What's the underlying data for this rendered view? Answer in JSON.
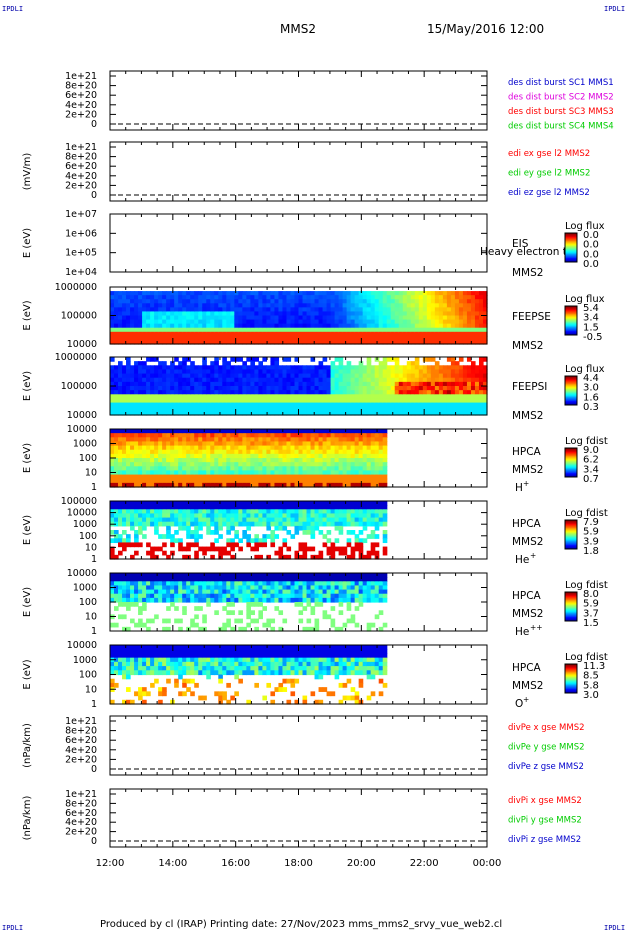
{
  "corners": {
    "tl": "IPDLI",
    "tr": "IPDLI",
    "bl": "IPDLI",
    "br": "IPDLI"
  },
  "header": {
    "spacecraft": "MMS2",
    "datetime": "15/May/2016 12:00"
  },
  "footer": {
    "text": "Produced by cl (IRAP)   Printing date: 27/Nov/2023   mms_mms2_srvy_vue_web2.cl"
  },
  "xaxis": {
    "ticks": [
      "12:00",
      "14:00",
      "16:00",
      "18:00",
      "20:00",
      "22:00",
      "00:00"
    ],
    "range_hours": [
      12,
      24
    ]
  },
  "colors": {
    "red": "#ff0000",
    "magenta": "#dd00dd",
    "green": "#00cc00",
    "blue": "#0000cc"
  },
  "chart_data": [
    {
      "type": "line",
      "ylabel": "",
      "yticks": [
        "1e+21",
        "8e+20",
        "6e+20",
        "4e+20",
        "2e+20",
        "0"
      ],
      "legend": [
        {
          "text": "des dist burst SC1 MMS1",
          "color": "#0000cc"
        },
        {
          "text": "des dist burst SC2 MMS2",
          "color": "#dd00dd"
        },
        {
          "text": "des dist burst SC3 MMS3",
          "color": "#ff0000"
        },
        {
          "text": "des dist burst SC4 MMS4",
          "color": "#00cc00"
        }
      ]
    },
    {
      "type": "line",
      "ylabel": "(mV/m)",
      "yticks": [
        "1e+21",
        "8e+20",
        "6e+20",
        "4e+20",
        "2e+20",
        "0"
      ],
      "legend": [
        {
          "text": "edi ex gse l2 MMS2",
          "color": "#ff0000"
        },
        {
          "text": "edi ey gse l2 MMS2",
          "color": "#00cc00"
        },
        {
          "text": "edi ez gse l2 MMS2",
          "color": "#0000cc"
        }
      ]
    },
    {
      "type": "heatmap",
      "ylabel": "E (eV)",
      "yticks": [
        "1e+07",
        "1e+06",
        "1e+05",
        "1e+04"
      ],
      "labels": [
        "EIS",
        "MMS2"
      ],
      "overlay": "Heavy electron to",
      "cbar_title": "Log flux",
      "cbar_ticks": [
        "0.0",
        "0.0",
        "0.0",
        "0.0"
      ]
    },
    {
      "type": "heatmap",
      "ylabel": "E (eV)",
      "yticks": [
        "1000000",
        "100000",
        "10000"
      ],
      "labels": [
        "FEEPSE",
        "MMS2"
      ],
      "cbar_title": "Log flux",
      "cbar_ticks": [
        "5.4",
        "3.4",
        "1.5",
        "-0.5"
      ]
    },
    {
      "type": "heatmap",
      "ylabel": "E (eV)",
      "yticks": [
        "1000000",
        "100000",
        "10000"
      ],
      "labels": [
        "FEEPSI",
        "MMS2"
      ],
      "cbar_title": "Log flux",
      "cbar_ticks": [
        "4.4",
        "3.0",
        "1.6",
        "0.3"
      ]
    },
    {
      "type": "heatmap",
      "ylabel": "E (eV)",
      "yticks": [
        "10000",
        "1000",
        "100",
        "10",
        "1"
      ],
      "labels": [
        "HPCA",
        "MMS2"
      ],
      "species": "H",
      "species_sup": "+",
      "cbar_title": "Log fdist",
      "cbar_ticks": [
        "9.0",
        "6.2",
        "3.4",
        "0.7"
      ]
    },
    {
      "type": "heatmap",
      "ylabel": "E (eV)",
      "yticks": [
        "100000",
        "10000",
        "1000",
        "100",
        "10",
        "1"
      ],
      "labels": [
        "HPCA",
        "MMS2"
      ],
      "species": "He",
      "species_sup": "+",
      "cbar_title": "Log fdist",
      "cbar_ticks": [
        "7.9",
        "5.9",
        "3.9",
        "1.8"
      ]
    },
    {
      "type": "heatmap",
      "ylabel": "E (eV)",
      "yticks": [
        "10000",
        "1000",
        "100",
        "10",
        "1"
      ],
      "labels": [
        "HPCA",
        "MMS2"
      ],
      "species": "He",
      "species_sup": "++",
      "cbar_title": "Log fdist",
      "cbar_ticks": [
        "8.0",
        "5.9",
        "3.7",
        "1.5"
      ]
    },
    {
      "type": "heatmap",
      "ylabel": "E (eV)",
      "yticks": [
        "10000",
        "1000",
        "100",
        "10",
        "1"
      ],
      "labels": [
        "HPCA",
        "MMS2"
      ],
      "species": "O",
      "species_sup": "+",
      "cbar_title": "Log fdist",
      "cbar_ticks": [
        "11.3",
        "8.5",
        "5.8",
        "3.0"
      ]
    },
    {
      "type": "line",
      "ylabel": "(nPa/km)",
      "yticks": [
        "1e+21",
        "8e+20",
        "6e+20",
        "4e+20",
        "2e+20",
        "0"
      ],
      "legend": [
        {
          "text": "divPe x gse MMS2",
          "color": "#ff0000"
        },
        {
          "text": "divPe y gse MMS2",
          "color": "#00cc00"
        },
        {
          "text": "divPe z gse MMS2",
          "color": "#0000cc"
        }
      ]
    },
    {
      "type": "line",
      "ylabel": "(nPa/km)",
      "yticks": [
        "1e+21",
        "8e+20",
        "6e+20",
        "4e+20",
        "2e+20",
        "0"
      ],
      "legend": [
        {
          "text": "divPi x gse MMS2",
          "color": "#ff0000"
        },
        {
          "text": "divPi y gse MMS2",
          "color": "#00cc00"
        },
        {
          "text": "divPi z gse MMS2",
          "color": "#0000cc"
        }
      ]
    }
  ]
}
